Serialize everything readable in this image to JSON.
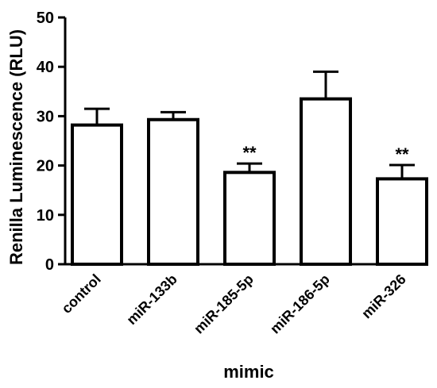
{
  "chart_data": {
    "type": "bar",
    "title": "",
    "xlabel": "mimic",
    "ylabel": "Renilla Luminescence (RLU)",
    "ylim": [
      0,
      50
    ],
    "yticks": [
      0,
      10,
      20,
      30,
      40,
      50
    ],
    "grid": false,
    "legend": "none",
    "categories": [
      "control",
      "miR-133b",
      "miR-185-5p",
      "miR-186-5p",
      "miR-326"
    ],
    "values": [
      28.2,
      29.3,
      18.6,
      33.5,
      17.3
    ],
    "errors": [
      3.3,
      1.5,
      1.8,
      5.5,
      2.8
    ],
    "annotations": [
      "",
      "",
      "**",
      "",
      "**"
    ],
    "bar_fill": "#ffffff",
    "bar_stroke": "#000000"
  }
}
